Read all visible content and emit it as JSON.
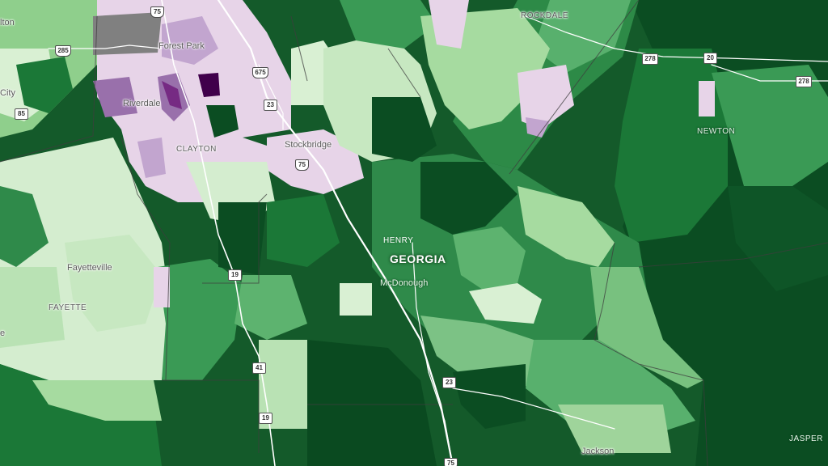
{
  "map": {
    "colors": {
      "dark_green": "#00441b",
      "green_deep": "#1b7837",
      "green_mid": "#3a9a55",
      "green_light": "#a6dba0",
      "green_pale": "#d9f0d3",
      "purple_pale": "#e7d4e8",
      "purple_light": "#c2a5cf",
      "purple_mid": "#9970ab",
      "purple_dark": "#762a83",
      "no_data": "#808080"
    },
    "state_label": "GEORGIA",
    "county_labels": {
      "rockdale": "ROCKDALE",
      "newton": "NEWTON",
      "clayton": "CLAYTON",
      "henry": "HENRY",
      "fayette": "FAYETTE",
      "jasper": "JASPER"
    },
    "city_labels": {
      "alton": "lton",
      "forest_park": "Forest Park",
      "city": "City",
      "riverdale": "Riverdale",
      "stockbridge": "Stockbridge",
      "fayetteville": "Fayetteville",
      "mcdonough": "McDonough",
      "jackson": "Jackson",
      "partial_e": "e"
    },
    "route_shields": {
      "i75_top": "75",
      "i285": "285",
      "us278_a": "278",
      "us20": "20",
      "us278_b": "278",
      "i675": "675",
      "ga85": "85",
      "us23_a": "23",
      "i75_mid": "75",
      "ga19_a": "19",
      "us41": "41",
      "us23_b": "23",
      "ga19_b": "19",
      "i75_bottom": "75"
    }
  }
}
